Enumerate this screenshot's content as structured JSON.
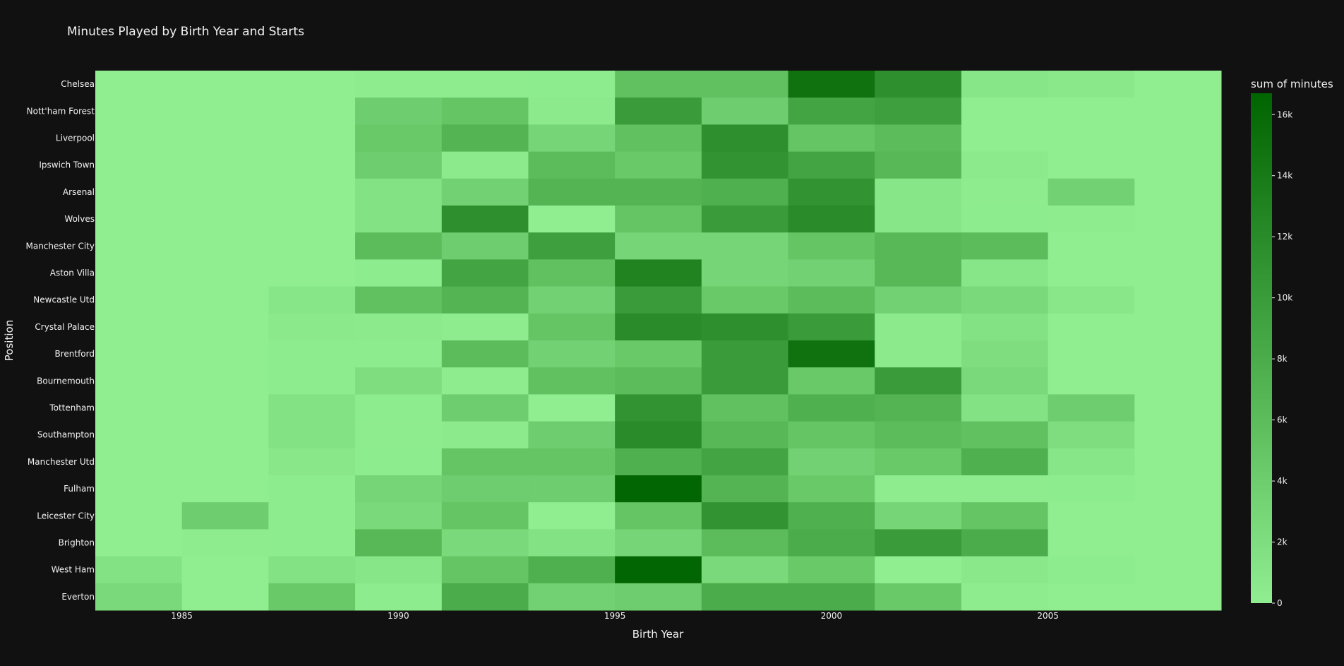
{
  "chart_data": {
    "type": "heatmap",
    "title": "Minutes Played by Birth Year and Starts",
    "xlabel": "Birth Year",
    "ylabel": "Position",
    "x_tick_labels": [
      "1985",
      "1990",
      "1995",
      "2000",
      "2005"
    ],
    "x_tick_values": [
      1985,
      1990,
      1995,
      2000,
      2005
    ],
    "x_bins": [
      1984,
      1986,
      1988,
      1990,
      1992,
      1994,
      1996,
      1998,
      2000,
      2002,
      2004,
      2006,
      2008
    ],
    "x_range": [
      1983,
      2009
    ],
    "rows": [
      "Chelsea",
      "Nott'ham Forest",
      "Liverpool",
      "Ipswich Town",
      "Arsenal",
      "Wolves",
      "Manchester City",
      "Aston Villa",
      "Newcastle Utd",
      "Crystal Palace",
      "Brentford",
      "Bournemouth",
      "Tottenham",
      "Southampton",
      "Manchester Utd",
      "Fulham",
      "Leicester City",
      "Brighton",
      "West Ham",
      "Everton"
    ],
    "values": [
      [
        0,
        0,
        0,
        200,
        200,
        300,
        5500,
        5500,
        15000,
        11500,
        1000,
        700,
        0
      ],
      [
        0,
        0,
        0,
        4000,
        5000,
        500,
        10000,
        4000,
        9000,
        9500,
        0,
        0,
        0
      ],
      [
        0,
        0,
        0,
        4500,
        7000,
        3000,
        5500,
        11500,
        5000,
        6000,
        0,
        0,
        0
      ],
      [
        0,
        0,
        0,
        4000,
        500,
        6000,
        4500,
        11000,
        9000,
        6500,
        500,
        0,
        0
      ],
      [
        0,
        0,
        0,
        1500,
        3500,
        7000,
        7000,
        7500,
        11000,
        1000,
        200,
        3500,
        0
      ],
      [
        0,
        0,
        0,
        1500,
        11500,
        0,
        5000,
        10000,
        12000,
        1000,
        300,
        200,
        0
      ],
      [
        0,
        0,
        0,
        6000,
        4000,
        9500,
        3000,
        3000,
        5000,
        6500,
        6000,
        0,
        0
      ],
      [
        0,
        0,
        0,
        300,
        9000,
        5500,
        13000,
        3000,
        3500,
        6500,
        1000,
        0,
        0
      ],
      [
        0,
        0,
        1000,
        5500,
        7000,
        3500,
        10000,
        4500,
        6000,
        3500,
        2500,
        800,
        0
      ],
      [
        0,
        0,
        600,
        500,
        200,
        5000,
        12000,
        11500,
        10000,
        500,
        1500,
        0,
        0
      ],
      [
        0,
        0,
        300,
        300,
        6000,
        3500,
        4500,
        10000,
        15000,
        500,
        2000,
        0,
        0
      ],
      [
        0,
        0,
        300,
        2000,
        200,
        5500,
        6000,
        10000,
        4500,
        10000,
        2500,
        0,
        0
      ],
      [
        0,
        0,
        1500,
        300,
        4000,
        0,
        11000,
        5500,
        7500,
        7000,
        1500,
        4000,
        0
      ],
      [
        0,
        0,
        1500,
        200,
        500,
        4000,
        12000,
        6500,
        5000,
        6000,
        5500,
        2000,
        0
      ],
      [
        0,
        0,
        800,
        300,
        5000,
        5000,
        7500,
        9000,
        3500,
        4500,
        7500,
        1000,
        0
      ],
      [
        0,
        0,
        300,
        3000,
        4000,
        4000,
        16500,
        7000,
        4500,
        200,
        200,
        300,
        0
      ],
      [
        0,
        4000,
        300,
        2500,
        5000,
        0,
        5000,
        11000,
        7500,
        3000,
        5000,
        0,
        0
      ],
      [
        0,
        200,
        300,
        6500,
        2500,
        1500,
        3000,
        6000,
        8000,
        10000,
        8000,
        0,
        0
      ],
      [
        1500,
        0,
        1500,
        1000,
        5000,
        7500,
        16500,
        2500,
        4500,
        0,
        700,
        300,
        0
      ],
      [
        2500,
        0,
        4500,
        300,
        8000,
        3500,
        4000,
        8000,
        8000,
        4500,
        200,
        0,
        0
      ]
    ],
    "colorbar": {
      "title": "sum of minutes",
      "range": [
        0,
        16700
      ],
      "tick_values": [
        0,
        2000,
        4000,
        6000,
        8000,
        10000,
        12000,
        14000,
        16000
      ],
      "tick_labels": [
        "0",
        "2k",
        "4k",
        "6k",
        "8k",
        "10k",
        "12k",
        "14k",
        "16k"
      ],
      "colors": [
        "#90ee90",
        "#006400"
      ]
    },
    "grid": false,
    "legend": "colorbar-right"
  }
}
